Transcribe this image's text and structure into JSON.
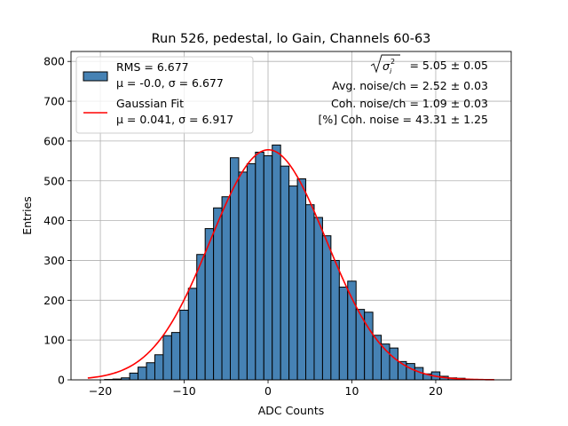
{
  "chart_data": {
    "type": "bar",
    "title": "Run 526, pedestal, lo Gain, Channels 60-63",
    "xlabel": "ADC Counts",
    "ylabel": "Entries",
    "xlim": [
      -23.5,
      29
    ],
    "ylim": [
      0,
      825
    ],
    "xticks": [
      "−20",
      "−10",
      "0",
      "10",
      "20"
    ],
    "xtick_values": [
      -20,
      -10,
      0,
      10,
      20
    ],
    "yticks": [
      "0",
      "100",
      "200",
      "300",
      "400",
      "500",
      "600",
      "700",
      "800"
    ],
    "ytick_values": [
      0,
      100,
      200,
      300,
      400,
      500,
      600,
      700,
      800
    ],
    "grid": true,
    "bin_width": 1,
    "bins": [
      {
        "x": -19,
        "y": 1
      },
      {
        "x": -18,
        "y": 2
      },
      {
        "x": -17,
        "y": 5
      },
      {
        "x": -16,
        "y": 17
      },
      {
        "x": -15,
        "y": 32
      },
      {
        "x": -14,
        "y": 43
      },
      {
        "x": -13,
        "y": 63
      },
      {
        "x": -12,
        "y": 111
      },
      {
        "x": -11,
        "y": 119
      },
      {
        "x": -10,
        "y": 175
      },
      {
        "x": -9,
        "y": 230
      },
      {
        "x": -8,
        "y": 315
      },
      {
        "x": -7,
        "y": 380
      },
      {
        "x": -6,
        "y": 432
      },
      {
        "x": -5,
        "y": 460
      },
      {
        "x": -4,
        "y": 558
      },
      {
        "x": -3,
        "y": 522
      },
      {
        "x": -2,
        "y": 543
      },
      {
        "x": -1,
        "y": 572
      },
      {
        "x": 0,
        "y": 563
      },
      {
        "x": 1,
        "y": 590
      },
      {
        "x": 2,
        "y": 537
      },
      {
        "x": 3,
        "y": 487
      },
      {
        "x": 4,
        "y": 505
      },
      {
        "x": 5,
        "y": 440
      },
      {
        "x": 6,
        "y": 408
      },
      {
        "x": 7,
        "y": 362
      },
      {
        "x": 8,
        "y": 300
      },
      {
        "x": 9,
        "y": 233
      },
      {
        "x": 10,
        "y": 248
      },
      {
        "x": 11,
        "y": 177
      },
      {
        "x": 12,
        "y": 170
      },
      {
        "x": 13,
        "y": 112
      },
      {
        "x": 14,
        "y": 90
      },
      {
        "x": 15,
        "y": 80
      },
      {
        "x": 16,
        "y": 46
      },
      {
        "x": 17,
        "y": 41
      },
      {
        "x": 18,
        "y": 31
      },
      {
        "x": 19,
        "y": 15
      },
      {
        "x": 20,
        "y": 20
      },
      {
        "x": 21,
        "y": 9
      },
      {
        "x": 22,
        "y": 5
      },
      {
        "x": 23,
        "y": 4
      },
      {
        "x": 24,
        "y": 1
      }
    ],
    "fit": {
      "type": "gaussian",
      "mu": 0.041,
      "sigma": 6.917,
      "amplitude": 578,
      "x_range": [
        -21.5,
        27
      ],
      "color": "#ff0000"
    },
    "bar_color": "#4682b4",
    "bar_edge_color": "#000000",
    "legend": {
      "placement": "upper-left",
      "entries": [
        {
          "line1": "RMS = 6.677",
          "line2": "μ = -0.0, σ = 6.677",
          "swatch": "bar"
        },
        {
          "line1": "Gaussian Fit",
          "line2": "μ = 0.041, σ = 6.917",
          "swatch": "line"
        }
      ]
    },
    "annotations": {
      "placement": "upper-right",
      "sqrt_sigma_value": "= 5.05 ± 0.05",
      "avg_noise": "Avg. noise/ch = 2.52 ± 0.03",
      "coh_noise": "Coh. noise/ch = 1.09 ± 0.03",
      "pct_coh_noise": "[%] Coh. noise = 43.31 ± 1.25"
    }
  }
}
